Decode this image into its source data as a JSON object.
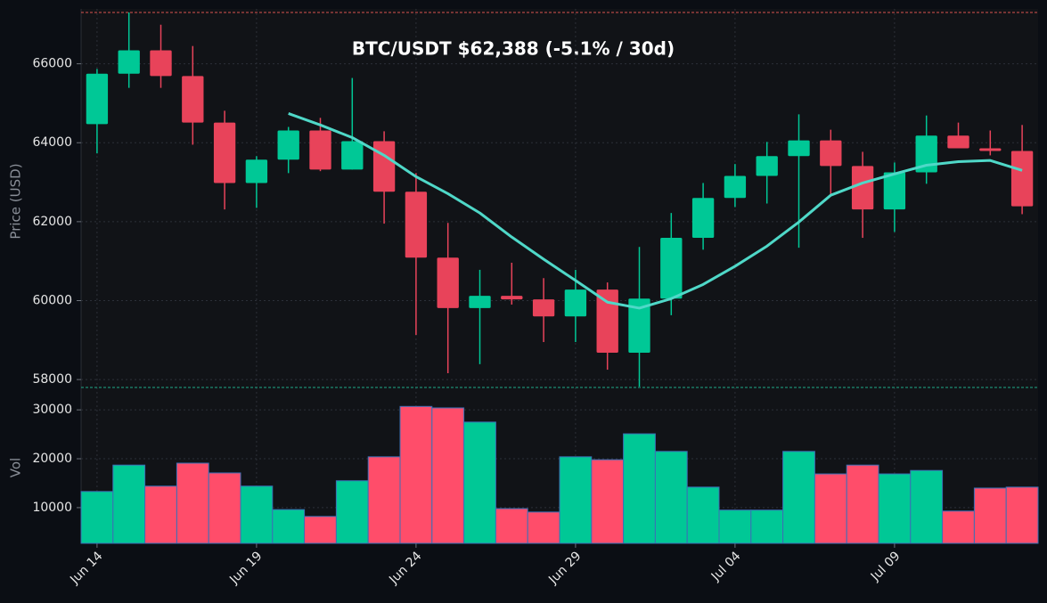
{
  "chart_data": {
    "type": "candlestick",
    "title": "BTC/USDT   $62,388   (-5.1% / 30d)",
    "ylabel": "Price (USD)",
    "categories": [
      "Jun 14",
      null,
      null,
      null,
      null,
      "Jun 19",
      null,
      null,
      null,
      null,
      "Jun 24",
      null,
      null,
      null,
      null,
      "Jun 29",
      null,
      null,
      null,
      null,
      "Jul 04",
      null,
      null,
      null,
      null,
      "Jul 09",
      null,
      null,
      null,
      null
    ],
    "open": [
      64470,
      65750,
      66340,
      65690,
      64510,
      62980,
      63570,
      64310,
      63320,
      64040,
      62760,
      61090,
      59810,
      60120,
      60030,
      59600,
      60280,
      58680,
      60050,
      61590,
      62600,
      63160,
      63660,
      64060,
      63410,
      62310,
      63250,
      64180,
      63860,
      63790
    ],
    "high": [
      65870,
      67300,
      66990,
      66450,
      64810,
      63660,
      64400,
      64630,
      65640,
      64290,
      63230,
      61970,
      60780,
      60960,
      60570,
      60780,
      60460,
      61360,
      62220,
      62980,
      63460,
      64020,
      64720,
      64330,
      63770,
      63500,
      64690,
      64510,
      64310,
      64450
    ],
    "low": [
      63730,
      65390,
      65390,
      63950,
      62310,
      62350,
      63230,
      63280,
      63320,
      61950,
      59130,
      58160,
      58390,
      59900,
      58950,
      58950,
      58250,
      57820,
      59630,
      61290,
      62370,
      62460,
      61340,
      62670,
      61590,
      61740,
      62960,
      63860,
      63680,
      62190
    ],
    "close": [
      65750,
      66340,
      65690,
      64510,
      62980,
      63570,
      64310,
      63320,
      64040,
      62760,
      61090,
      59810,
      60120,
      60030,
      59600,
      60280,
      58680,
      60050,
      61590,
      62600,
      63160,
      63660,
      64060,
      63410,
      62310,
      63250,
      64180,
      63860,
      63790,
      62388
    ],
    "up_color": "#00c896",
    "down_color": "#e8435a",
    "ma": {
      "color": "#4fd8c8",
      "values": [
        null,
        null,
        null,
        null,
        null,
        null,
        64740,
        64450,
        64130,
        63680,
        63140,
        62710,
        62220,
        61610,
        61050,
        60510,
        59960,
        59810,
        60050,
        60410,
        60870,
        61380,
        61990,
        62670,
        62980,
        63210,
        63430,
        63520,
        63550,
        63300
      ]
    },
    "hlines": [
      {
        "value": 67300,
        "color": "#d9534f"
      },
      {
        "value": 57800,
        "color": "#1fa88a"
      }
    ],
    "ylim": [
      57800,
      67300
    ],
    "yticks": [
      58000,
      60000,
      62000,
      64000,
      66000
    ],
    "grid": true,
    "volume": {
      "type": "bar",
      "ylabel": "Vol",
      "values": [
        13300,
        18700,
        14400,
        19100,
        17100,
        14400,
        9600,
        8200,
        15500,
        20400,
        30700,
        30400,
        27500,
        9800,
        9100,
        20400,
        19800,
        25100,
        21500,
        14200,
        9500,
        9500,
        21500,
        16900,
        18700,
        16900,
        17600,
        9300,
        14000,
        14200
      ],
      "up_color": "#00c896",
      "down_color": "#ff4d6a",
      "edge_color": "#3b6fb6",
      "ylim": [
        2700,
        34400
      ],
      "yticks": [
        10000,
        20000,
        30000
      ]
    }
  }
}
